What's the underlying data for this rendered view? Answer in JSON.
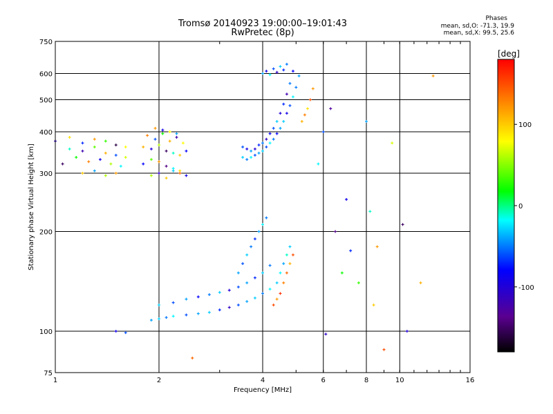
{
  "title": "Tromsø 20140923 19:00:00–19:01:43",
  "subtitle": "RwPretec (8p)",
  "phase_header": "Phases",
  "phase_line1": "mean, sd,O: -71.3, 19.9",
  "phase_line2": "mean, sd,X:  99.5, 25.6",
  "chart_data": {
    "type": "scatter",
    "xlabel": "Frequency [MHz]",
    "ylabel": "Stationary phase Virtual Height [km]",
    "xscale": "log",
    "yscale": "log",
    "xlim": [
      1,
      16
    ],
    "ylim": [
      75,
      750
    ],
    "xticks": [
      1,
      2,
      4,
      6,
      8,
      10,
      16
    ],
    "yticks": [
      75,
      100,
      200,
      300,
      400,
      500,
      600,
      750
    ],
    "grid": true,
    "colorbar": {
      "label": "[deg]",
      "range": [
        -180,
        180
      ],
      "ticks": [
        100,
        0,
        -100
      ]
    },
    "series": [
      {
        "x": [
          1.1,
          1.2,
          1.3,
          1.4,
          1.5,
          1.6
        ],
        "y": [
          355,
          350,
          360,
          345,
          340,
          335
        ],
        "phase": [
          -10,
          -120,
          40,
          110,
          -60,
          70
        ]
      },
      {
        "x": [
          1.05,
          1.15,
          1.25,
          1.35,
          1.45,
          1.55
        ],
        "y": [
          320,
          335,
          325,
          330,
          320,
          315
        ],
        "phase": [
          -150,
          20,
          130,
          -90,
          60,
          -20
        ]
      },
      {
        "x": [
          1.0,
          1.1,
          1.2,
          1.3,
          1.4,
          1.5,
          1.6
        ],
        "y": [
          375,
          385,
          370,
          380,
          375,
          365,
          360
        ],
        "phase": [
          -110,
          90,
          -70,
          120,
          30,
          -160,
          80
        ]
      },
      {
        "x": [
          1.2,
          1.3,
          1.4,
          1.5
        ],
        "y": [
          300,
          305,
          295,
          300
        ],
        "phase": [
          100,
          -40,
          60,
          120
        ]
      },
      {
        "x": [
          1.8,
          1.9,
          2.0,
          2.1,
          2.2,
          2.3,
          2.4
        ],
        "y": [
          360,
          355,
          365,
          350,
          345,
          340,
          350
        ],
        "phase": [
          110,
          -100,
          60,
          -150,
          -10,
          100,
          -80
        ]
      },
      {
        "x": [
          1.85,
          1.95,
          2.05,
          2.15,
          2.25,
          2.35
        ],
        "y": [
          390,
          380,
          395,
          375,
          385,
          370
        ],
        "phase": [
          130,
          -60,
          20,
          110,
          -120,
          80
        ]
      },
      {
        "x": [
          1.8,
          1.9,
          2.0,
          2.1,
          2.2,
          2.3
        ],
        "y": [
          320,
          330,
          325,
          315,
          310,
          305
        ],
        "phase": [
          -80,
          40,
          120,
          -140,
          -20,
          90
        ]
      },
      {
        "x": [
          1.9,
          2.0,
          2.1,
          2.2,
          2.3,
          2.4
        ],
        "y": [
          295,
          300,
          290,
          305,
          300,
          295
        ],
        "phase": [
          60,
          -110,
          100,
          -30,
          140,
          -90
        ]
      },
      {
        "x": [
          1.95,
          2.05,
          2.15,
          2.25
        ],
        "y": [
          410,
          405,
          400,
          395
        ],
        "phase": [
          120,
          -90,
          80,
          -40
        ]
      },
      {
        "x": [
          3.5,
          3.6,
          3.7,
          3.8,
          3.9,
          4.0,
          4.1,
          4.2,
          4.3,
          4.4,
          4.5,
          4.6,
          4.7,
          4.8,
          4.9,
          5.0,
          5.1
        ],
        "y": [
          335,
          330,
          335,
          340,
          345,
          350,
          360,
          370,
          380,
          395,
          410,
          430,
          455,
          480,
          510,
          545,
          590
        ],
        "phase": [
          -30,
          -50,
          -20,
          -60,
          -40,
          -30,
          -60,
          -20,
          -50,
          -80,
          -40,
          -30,
          -90,
          -60,
          -20,
          -50,
          -40
        ]
      },
      {
        "x": [
          3.5,
          3.6,
          3.7,
          3.8,
          3.9,
          4.0,
          4.1,
          4.2,
          4.3,
          4.4,
          4.5,
          4.6,
          4.7,
          4.8,
          4.9
        ],
        "y": [
          360,
          355,
          350,
          355,
          365,
          370,
          380,
          395,
          410,
          430,
          455,
          485,
          520,
          560,
          610
        ],
        "phase": [
          -60,
          -90,
          -40,
          -100,
          -70,
          -50,
          -110,
          -80,
          -60,
          -30,
          -100,
          -70,
          -120,
          -50,
          -80
        ]
      },
      {
        "x": [
          4.0,
          4.1,
          4.2,
          4.3,
          4.4,
          4.5,
          4.6,
          4.7
        ],
        "y": [
          600,
          610,
          595,
          620,
          605,
          630,
          615,
          640
        ],
        "phase": [
          -40,
          -90,
          -20,
          -60,
          -110,
          -30,
          -70,
          -50
        ]
      },
      {
        "x": [
          5.2,
          5.3,
          5.4,
          5.5,
          5.6
        ],
        "y": [
          430,
          450,
          470,
          500,
          540
        ],
        "phase": [
          110,
          130,
          90,
          150,
          120
        ]
      },
      {
        "x": [
          1.9,
          2.0,
          2.1,
          2.2,
          2.4,
          2.6,
          2.8,
          3.0,
          3.2,
          3.4,
          3.6,
          3.8,
          4.0,
          4.2
        ],
        "y": [
          108,
          109,
          110,
          111,
          112,
          113,
          114,
          116,
          118,
          120,
          123,
          126,
          130,
          134
        ],
        "phase": [
          -40,
          -30,
          -50,
          -20,
          -60,
          -40,
          -30,
          -70,
          -110,
          -60,
          -40,
          -30,
          -50,
          -20
        ]
      },
      {
        "x": [
          2.0,
          2.2,
          2.4,
          2.6,
          2.8,
          3.0,
          3.2,
          3.4,
          3.6,
          3.8,
          4.0,
          4.2
        ],
        "y": [
          120,
          122,
          125,
          127,
          129,
          131,
          133,
          136,
          140,
          145,
          150,
          158
        ],
        "phase": [
          -30,
          -60,
          -40,
          -80,
          -50,
          -30,
          -100,
          -60,
          -40,
          -70,
          -30,
          -50
        ]
      },
      {
        "x": [
          3.4,
          3.5,
          3.6,
          3.7,
          3.8,
          3.9,
          4.0,
          4.1
        ],
        "y": [
          150,
          160,
          170,
          180,
          190,
          200,
          210,
          220
        ],
        "phase": [
          -40,
          -60,
          -30,
          -50,
          -70,
          -40,
          -20,
          -50
        ]
      },
      {
        "x": [
          4.4,
          4.5,
          4.6,
          4.7,
          4.8
        ],
        "y": [
          140,
          150,
          160,
          170,
          180
        ],
        "phase": [
          -30,
          -20,
          -40,
          -10,
          -30
        ]
      },
      {
        "x": [
          4.3,
          4.4,
          4.5,
          4.6,
          4.7,
          4.8,
          4.9
        ],
        "y": [
          120,
          125,
          130,
          140,
          150,
          160,
          170
        ],
        "phase": [
          150,
          120,
          160,
          130,
          140,
          110,
          150
        ]
      },
      {
        "x": [
          1.5,
          1.6
        ],
        "y": [
          100,
          99
        ],
        "phase": [
          -90,
          -60
        ]
      },
      {
        "x": [
          2.5,
          6.1,
          6.5,
          7.0,
          7.6,
          8.2,
          8.6,
          9.0,
          10.5,
          11.5,
          12.5,
          6.0,
          5.8,
          9.5,
          10.2,
          8.0,
          6.3,
          6.8,
          7.2,
          8.4
        ],
        "y": [
          83,
          98,
          200,
          250,
          140,
          230,
          180,
          88,
          100,
          140,
          590,
          400,
          320,
          370,
          210,
          430,
          470,
          150,
          175,
          120
        ],
        "phase": [
          140,
          -110,
          -140,
          -90,
          30,
          -10,
          120,
          150,
          -100,
          110,
          120,
          -60,
          -20,
          70,
          -150,
          -40,
          -130,
          20,
          -70,
          100
        ]
      }
    ]
  }
}
